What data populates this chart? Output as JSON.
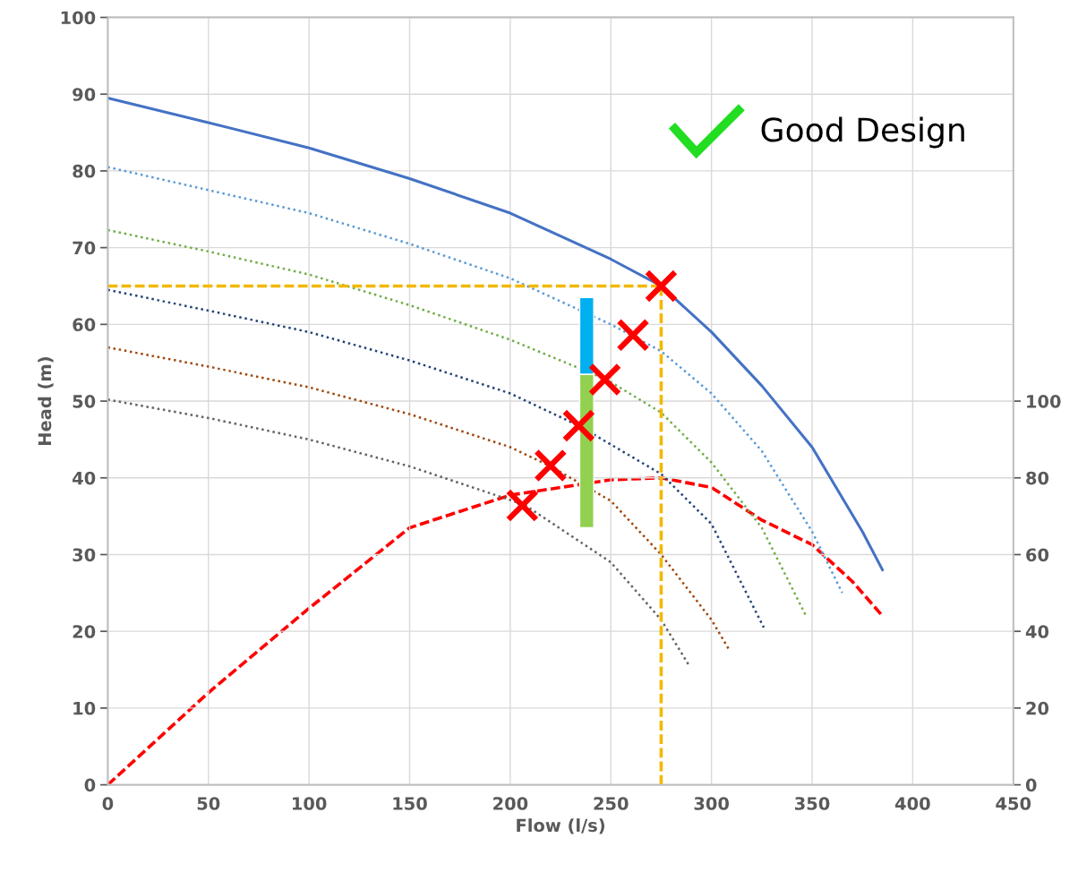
{
  "chart_data": {
    "type": "line",
    "xlabel": "Flow (l/s)",
    "ylabel": "Head (m)",
    "xlim": [
      0,
      450
    ],
    "xticks": [
      0,
      50,
      100,
      150,
      200,
      250,
      300,
      350,
      400,
      450
    ],
    "ylim": [
      0,
      100
    ],
    "yticks": [
      0,
      10,
      20,
      30,
      40,
      50,
      60,
      70,
      80,
      90,
      100
    ],
    "y2lim": [
      0,
      200
    ],
    "y2ticks": [
      0,
      20,
      40,
      60,
      80,
      100
    ],
    "grid": true,
    "annotations": [
      "Good Design"
    ],
    "series": [
      {
        "color": "#4472c4",
        "line_style": "solid",
        "x": [
          0,
          50,
          100,
          150,
          200,
          250,
          275,
          300,
          325,
          350,
          375,
          385
        ],
        "values": [
          89.5,
          86.3,
          83,
          79,
          74.5,
          68.5,
          65,
          59,
          52,
          44,
          33,
          28
        ]
      },
      {
        "color": "#5b9bd5",
        "line_style": "dotted",
        "x": [
          0,
          50,
          100,
          150,
          200,
          250,
          275,
          300,
          325,
          350,
          365
        ],
        "values": [
          80.5,
          77.5,
          74.5,
          70.5,
          66,
          60,
          56.5,
          51,
          43.5,
          33,
          25
        ]
      },
      {
        "color": "#70ad47",
        "line_style": "dotted",
        "x": [
          0,
          50,
          100,
          150,
          200,
          248,
          275,
          300,
          325,
          347
        ],
        "values": [
          72.3,
          69.5,
          66.5,
          62.5,
          58,
          52.8,
          48.5,
          42,
          33.5,
          22
        ]
      },
      {
        "color": "#264478",
        "line_style": "dotted",
        "x": [
          0,
          50,
          100,
          150,
          200,
          234,
          275,
          300,
          326
        ],
        "values": [
          64.5,
          61.8,
          59,
          55.3,
          51,
          46.8,
          40.5,
          34,
          20.5
        ]
      },
      {
        "color": "#9e480e",
        "line_style": "dotted",
        "x": [
          0,
          50,
          100,
          150,
          200,
          220,
          250,
          275,
          300,
          309
        ],
        "values": [
          57,
          54.5,
          51.8,
          48.3,
          44,
          41.5,
          37,
          30,
          21.5,
          17.5
        ]
      },
      {
        "color": "#636363",
        "line_style": "dotted",
        "x": [
          0,
          50,
          100,
          150,
          207,
          250,
          275,
          289
        ],
        "values": [
          50.2,
          47.8,
          45,
          41.5,
          36.5,
          29,
          21.5,
          15.5
        ]
      },
      {
        "axis": "y2",
        "color": "#ff0000",
        "line_style": "dashed",
        "x": [
          0,
          50,
          100,
          150,
          200,
          250,
          275,
          300,
          325,
          350,
          370,
          385
        ],
        "values": [
          0,
          24,
          46,
          67,
          75.5,
          79.5,
          80,
          77.5,
          69,
          62.6,
          53,
          44
        ]
      },
      {
        "color": "#f2b800",
        "line_style": "dashed",
        "x": [
          0,
          275
        ],
        "values": [
          65,
          65
        ]
      },
      {
        "color": "#f2b800",
        "line_style": "dashed",
        "x": [
          275,
          275
        ],
        "values": [
          0,
          65
        ]
      },
      {
        "type": "bar",
        "color": "#92d050",
        "x": [
          238
        ],
        "base": [
          33.5
        ],
        "values": [
          20
        ]
      },
      {
        "type": "bar",
        "color": "#00b0f0",
        "x": [
          238
        ],
        "base": [
          53.5
        ],
        "values": [
          10
        ]
      },
      {
        "type": "scatter",
        "color": "#ff0000",
        "marker": "cross",
        "x": [
          275,
          261,
          247,
          234,
          220,
          206
        ],
        "values": [
          65,
          58.6,
          52.8,
          46.8,
          41.6,
          36.4
        ]
      }
    ]
  }
}
